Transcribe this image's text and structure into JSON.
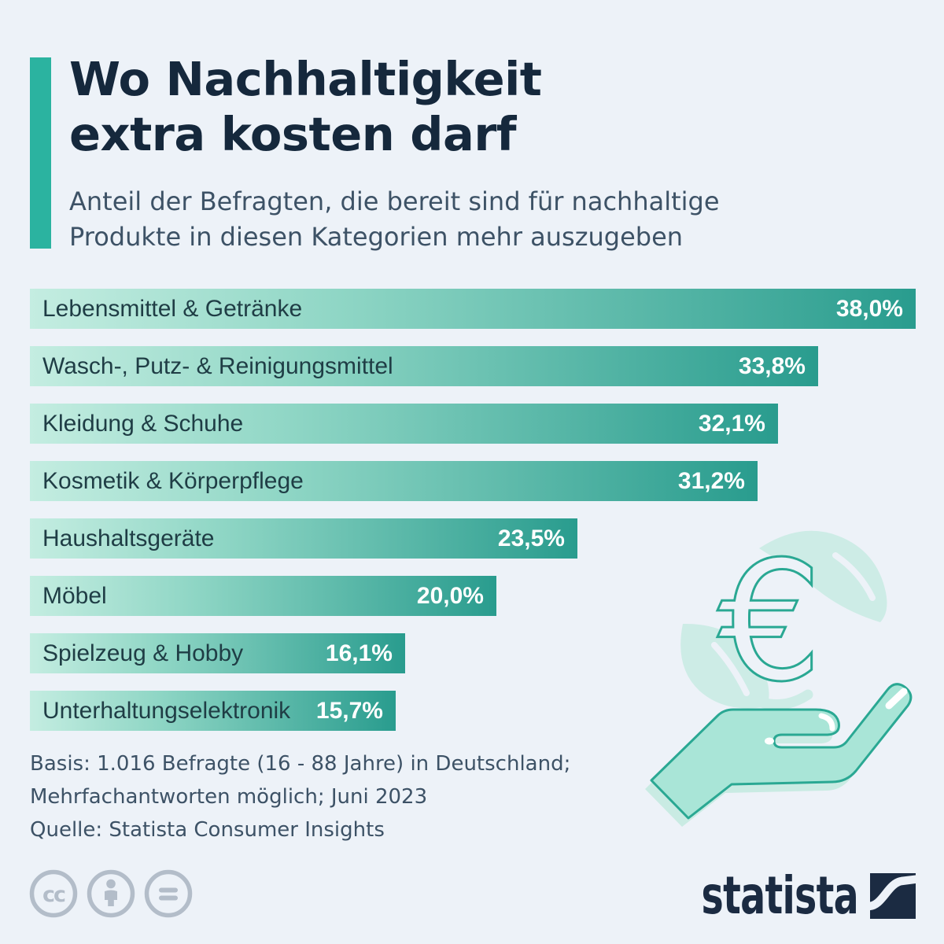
{
  "header": {
    "title_line1": "Wo Nachhaltigkeit",
    "title_line2": "extra kosten darf",
    "subtitle_line1": "Anteil der Befragten, die bereit sind für nachhaltige",
    "subtitle_line2": "Produkte in diesen Kategorien mehr auszugeben",
    "accent_color": "#2bb3a0"
  },
  "chart_data": {
    "type": "bar",
    "orientation": "horizontal",
    "title": "Wo Nachhaltigkeit extra kosten darf",
    "subtitle": "Anteil der Befragten, die bereit sind für nachhaltige Produkte in diesen Kategorien mehr auszugeben",
    "unit": "%",
    "xlim": [
      0,
      38
    ],
    "grid": false,
    "legend": false,
    "categories": [
      "Lebensmittel & Getränke",
      "Wasch-, Putz- & Reinigungsmittel",
      "Kleidung & Schuhe",
      "Kosmetik & Körperpflege",
      "Haushaltsgeräte",
      "Möbel",
      "Spielzeug & Hobby",
      "Unterhaltungselektronik"
    ],
    "values": [
      38.0,
      33.8,
      32.1,
      31.2,
      23.5,
      20.0,
      16.1,
      15.7
    ],
    "value_labels": [
      "38,0%",
      "33,8%",
      "32,1%",
      "31,2%",
      "23,5%",
      "20,0%",
      "16,1%",
      "15,7%"
    ],
    "bar_gradient_start": "#c4ede1",
    "bar_gradient_end": "#299c8e",
    "bar_label_color": "#1f3d45",
    "bar_value_color": "#ffffff"
  },
  "illustration": {
    "name": "hand-holding-euro-with-leaves",
    "hand_fill": "#a9e5d7",
    "outline_color": "#2aa893",
    "leaf_color": "#cdece6"
  },
  "footer": {
    "basis_line1": "Basis: 1.016 Befragte (16 - 88 Jahre) in Deutschland;",
    "basis_line2": "Mehrfachantworten möglich; Juni 2023",
    "source": "Quelle: Statista Consumer Insights"
  },
  "branding": {
    "logo_text": "statista",
    "logo_color": "#1b2b42",
    "icon_color": "#b3bdc9",
    "license_icons": [
      {
        "name": "cc-icon",
        "label": "cc"
      },
      {
        "name": "attribution-person-icon",
        "label": ""
      },
      {
        "name": "no-derivatives-equals-icon",
        "label": ""
      }
    ]
  },
  "page": {
    "background": "#edf2f8"
  }
}
